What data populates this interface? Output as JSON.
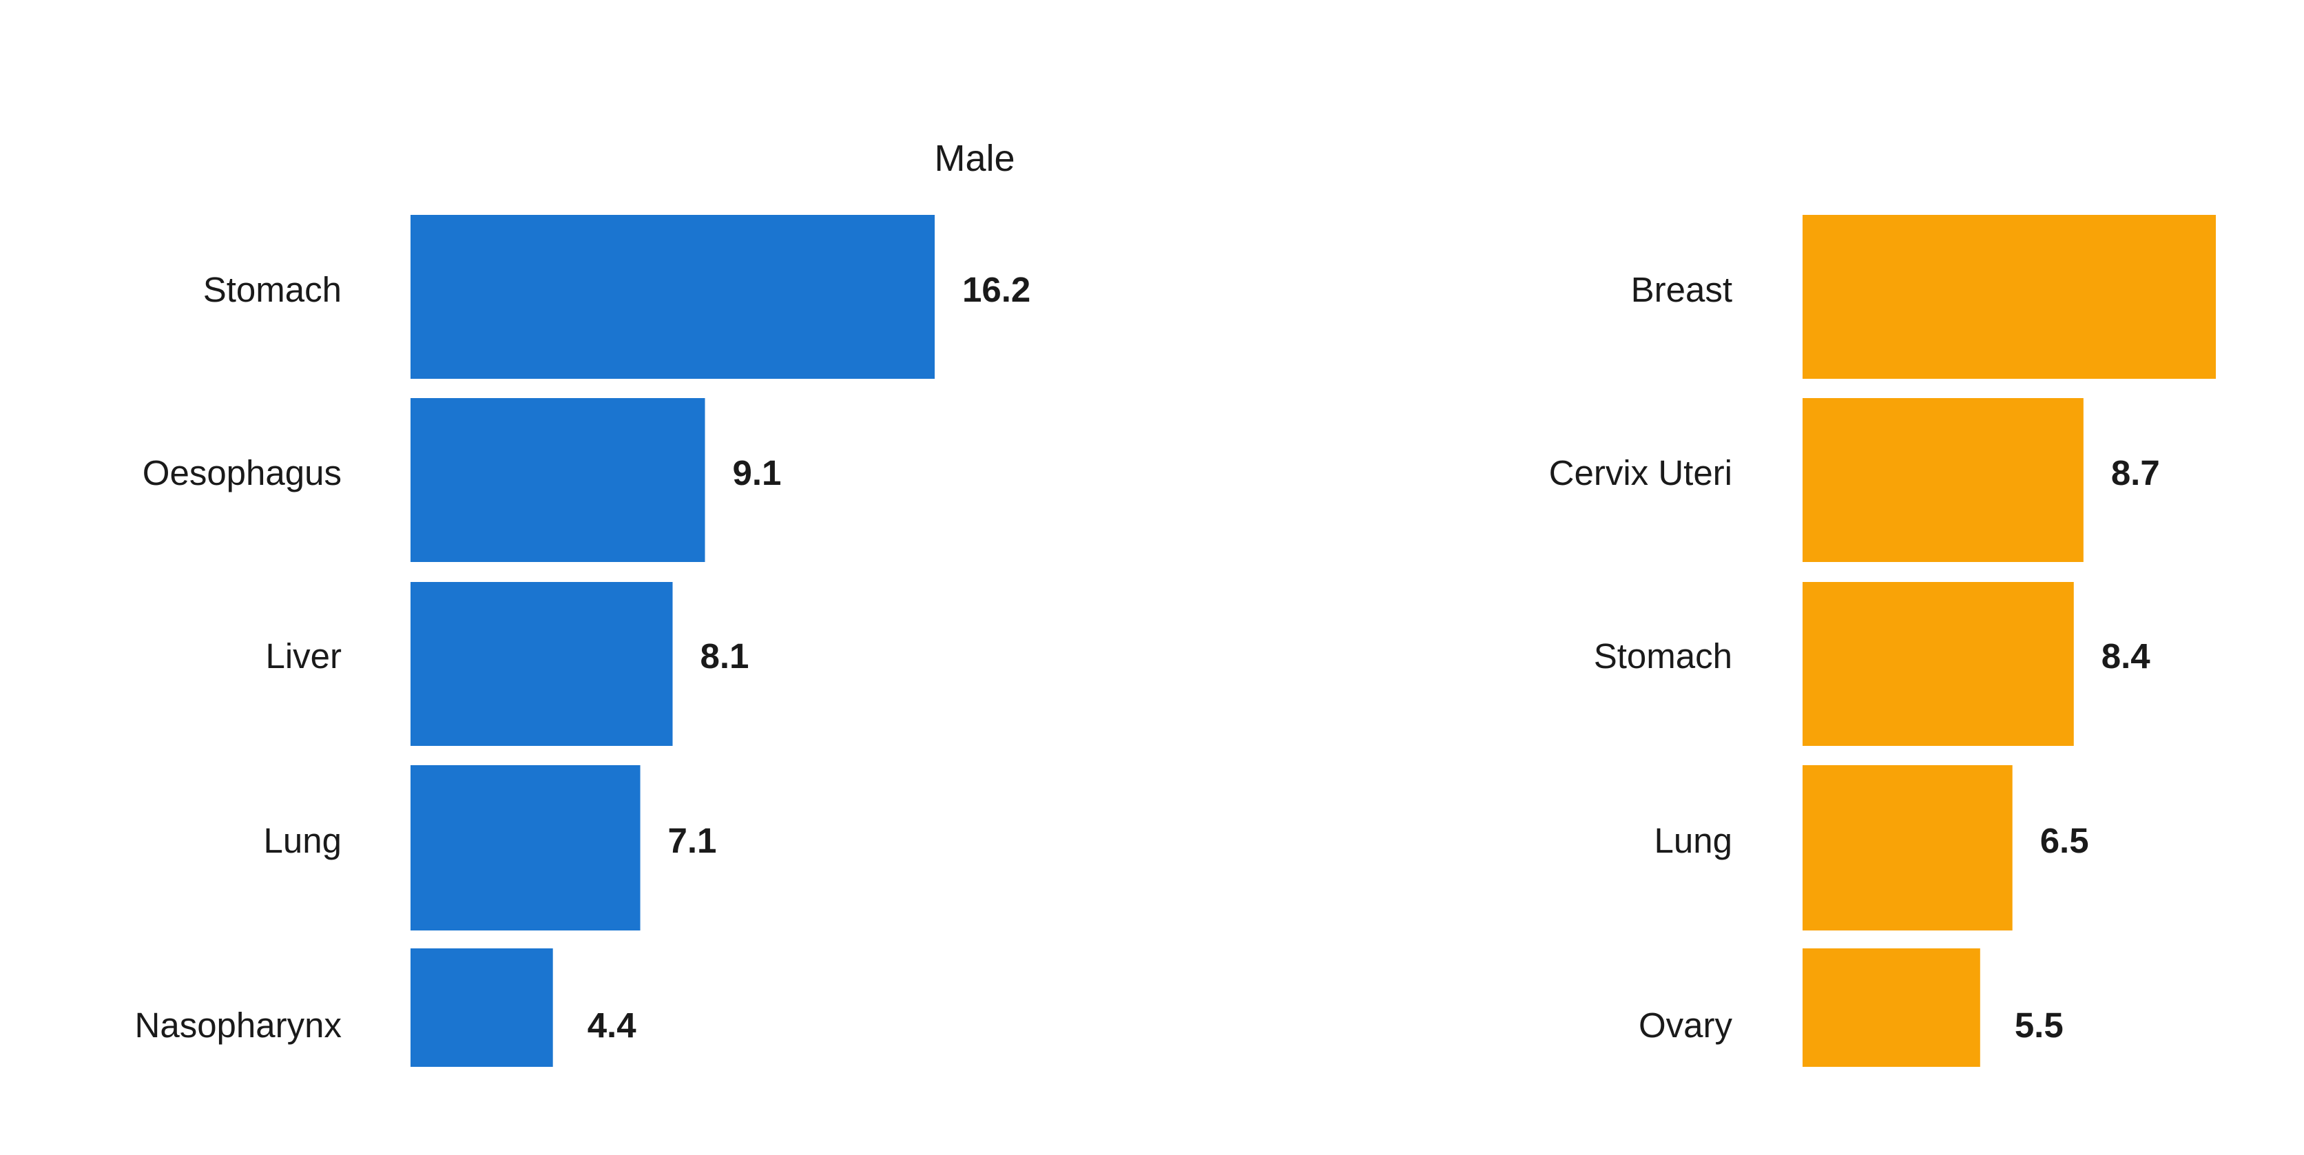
{
  "chart_data": [
    {
      "type": "bar",
      "orientation": "horizontal",
      "title": "Male",
      "color": "#1b75d0",
      "categories": [
        "Stomach",
        "Oesophagus",
        "Liver",
        "Lung",
        "Nasopharynx"
      ],
      "values": [
        16.2,
        9.1,
        8.1,
        7.1,
        4.4
      ],
      "data_labels": [
        "16.2",
        "9.1",
        "8.1",
        "7.1",
        "4.4"
      ],
      "xlabel": "",
      "ylabel": "",
      "xlim": [
        0,
        16.2
      ],
      "grid": false,
      "legend": "none"
    },
    {
      "type": "bar",
      "orientation": "horizontal",
      "title": "",
      "color": "#f9a307",
      "categories": [
        "Breast",
        "Cervix Uteri",
        "Stomach",
        "Lung",
        "Ovary"
      ],
      "values": [
        12.8,
        8.7,
        8.4,
        6.5,
        5.5
      ],
      "data_labels": [
        "",
        "8.7",
        "8.4",
        "6.5",
        "5.5"
      ],
      "xlabel": "",
      "ylabel": "",
      "xlim": [
        0,
        12.8
      ],
      "grid": false,
      "legend": "none"
    }
  ]
}
